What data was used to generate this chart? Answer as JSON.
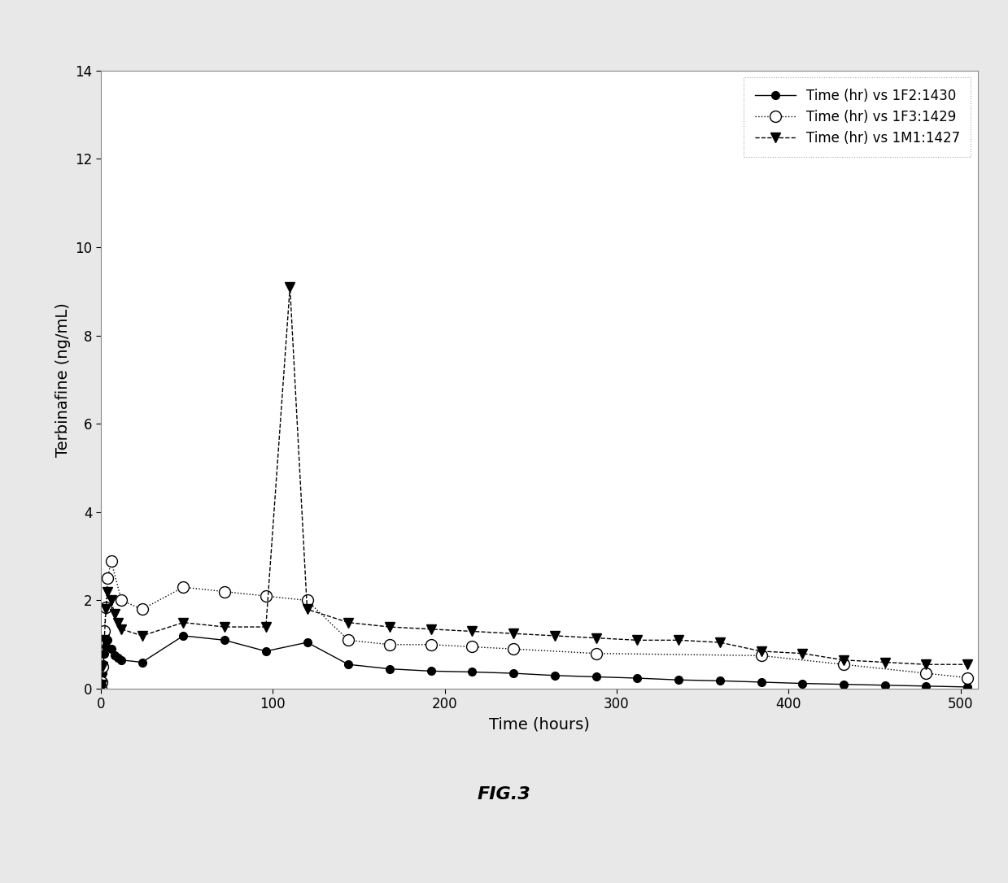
{
  "series": [
    {
      "label": "Time (hr) vs 1F2:1430",
      "linestyle": "-",
      "marker": "o",
      "markerfacecolor": "black",
      "markeredgecolor": "black",
      "color": "black",
      "markersize": 7,
      "linewidth": 1.0,
      "x": [
        0,
        0.25,
        0.5,
        0.75,
        1,
        1.5,
        2,
        3,
        4,
        6,
        8,
        10,
        12,
        24,
        48,
        72,
        96,
        120,
        144,
        168,
        192,
        216,
        240,
        264,
        288,
        312,
        336,
        360,
        384,
        408,
        432,
        456,
        480,
        504
      ],
      "y": [
        0,
        0.08,
        0.12,
        0.18,
        0.35,
        0.55,
        0.8,
        0.95,
        1.1,
        0.9,
        0.75,
        0.7,
        0.65,
        0.6,
        1.2,
        1.1,
        0.85,
        1.05,
        0.55,
        0.45,
        0.4,
        0.38,
        0.35,
        0.3,
        0.27,
        0.24,
        0.2,
        0.18,
        0.15,
        0.12,
        0.1,
        0.08,
        0.06,
        0.04
      ]
    },
    {
      "label": "Time (hr) vs 1F3:1429",
      "linestyle": ":",
      "marker": "o",
      "markerfacecolor": "white",
      "markeredgecolor": "black",
      "color": "black",
      "markersize": 10,
      "linewidth": 1.0,
      "x": [
        0,
        0.5,
        1,
        2,
        3,
        4,
        6,
        12,
        24,
        48,
        72,
        96,
        120,
        144,
        168,
        192,
        216,
        240,
        288,
        384,
        432,
        480,
        504
      ],
      "y": [
        0,
        0.15,
        0.5,
        1.3,
        1.85,
        2.5,
        2.9,
        2.0,
        1.8,
        2.3,
        2.2,
        2.1,
        2.0,
        1.1,
        1.0,
        1.0,
        0.95,
        0.9,
        0.8,
        0.75,
        0.55,
        0.35,
        0.25
      ]
    },
    {
      "label": "Time (hr) vs 1M1:1427",
      "linestyle": "--",
      "marker": "v",
      "markerfacecolor": "black",
      "markeredgecolor": "black",
      "color": "black",
      "markersize": 9,
      "linewidth": 1.0,
      "x": [
        0,
        0.5,
        1,
        2,
        3,
        4,
        6,
        8,
        10,
        12,
        24,
        48,
        72,
        96,
        110,
        120,
        144,
        168,
        192,
        216,
        240,
        264,
        288,
        312,
        336,
        360,
        384,
        408,
        432,
        456,
        480,
        504
      ],
      "y": [
        0,
        0.1,
        0.5,
        1.1,
        1.8,
        2.2,
        2.0,
        1.7,
        1.5,
        1.35,
        1.2,
        1.5,
        1.4,
        1.4,
        9.1,
        1.8,
        1.5,
        1.4,
        1.35,
        1.3,
        1.25,
        1.2,
        1.15,
        1.1,
        1.1,
        1.05,
        0.85,
        0.8,
        0.65,
        0.6,
        0.55,
        0.55
      ]
    }
  ],
  "xlabel": "Time (hours)",
  "ylabel": "Terbinafine (ng/mL)",
  "xlim": [
    0,
    510
  ],
  "ylim": [
    0,
    14
  ],
  "yticks": [
    0,
    2,
    4,
    6,
    8,
    10,
    12,
    14
  ],
  "xticks": [
    0,
    100,
    200,
    300,
    400,
    500
  ],
  "legend_loc": "upper right",
  "figsize": [
    12.39,
    10.86
  ],
  "dpi": 100,
  "page_bg_color": "#e8e8e8",
  "plot_bg_color": "#ffffff",
  "fig_label": "FIG.3"
}
